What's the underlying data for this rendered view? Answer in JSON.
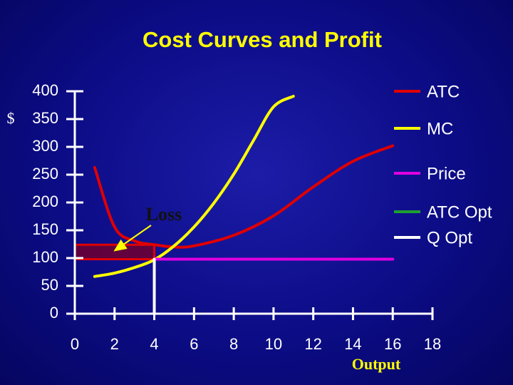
{
  "chart_data": {
    "type": "line",
    "title": "Cost Curves and Profit",
    "y_label": "$",
    "x_label": "Output",
    "annotation": "Loss",
    "xlim": [
      0,
      18
    ],
    "xticks": [
      0,
      2,
      4,
      6,
      8,
      10,
      12,
      14,
      16,
      18
    ],
    "ylim": [
      0,
      400
    ],
    "yticks": [
      0,
      50,
      100,
      150,
      200,
      250,
      300,
      350,
      400
    ],
    "series": [
      {
        "name": "ATC",
        "color": "#e00000",
        "x": [
          1,
          2,
          3,
          4,
          5,
          6,
          8,
          10,
          12,
          14,
          16
        ],
        "values": [
          263,
          156,
          131,
          124,
          120,
          122,
          141,
          176,
          228,
          274,
          302
        ]
      },
      {
        "name": "MC",
        "color": "#ffff00",
        "x": [
          1,
          2,
          3,
          4,
          5,
          6,
          7,
          8,
          9,
          10,
          11
        ],
        "values": [
          67,
          73,
          83,
          97,
          122,
          156,
          199,
          251,
          312,
          372,
          391
        ]
      },
      {
        "name": "Price",
        "color": "#e000e0",
        "x": [
          4,
          16
        ],
        "values": [
          98,
          98
        ]
      },
      {
        "name": "ATC Opt",
        "color": "#1f9f2f",
        "x": [],
        "values": []
      },
      {
        "name": "Q Opt",
        "color": "#ffffff",
        "x": [
          4,
          4
        ],
        "values": [
          0,
          98
        ]
      }
    ],
    "loss_rect": {
      "color": "#e00000",
      "x": [
        0,
        4
      ],
      "y": [
        98,
        124
      ]
    }
  }
}
